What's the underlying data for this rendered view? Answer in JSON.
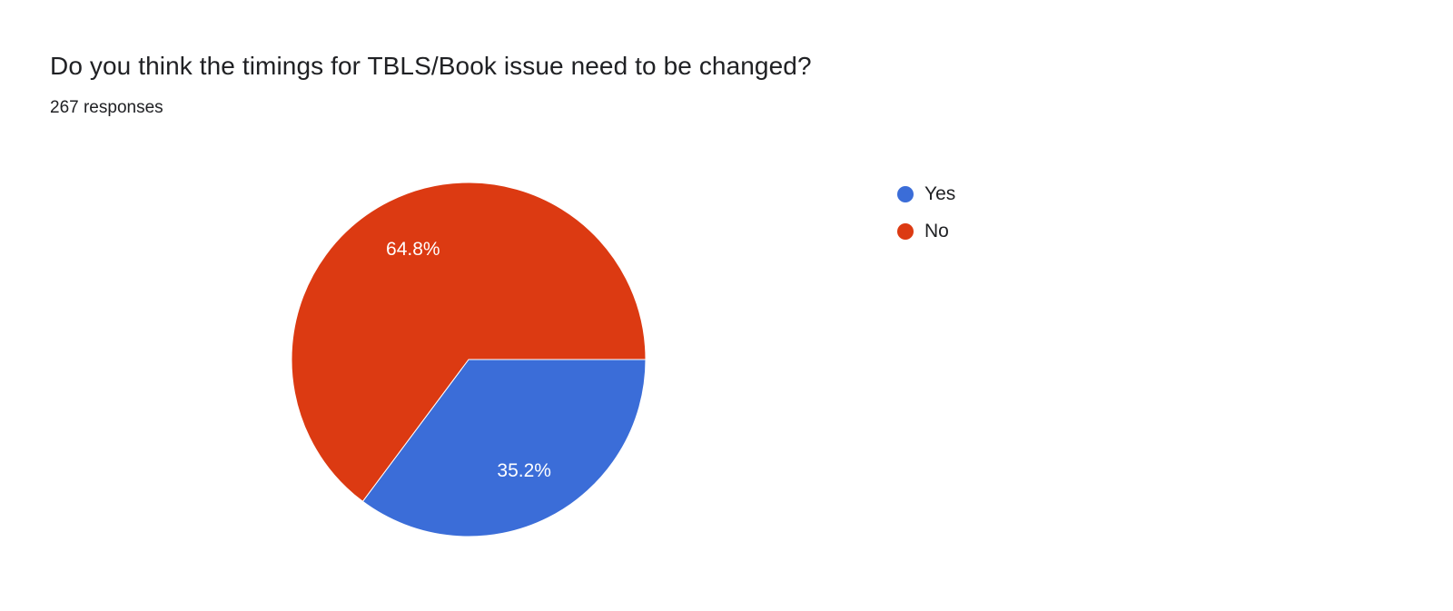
{
  "page": {
    "background_color": "#ffffff"
  },
  "chart_data": {
    "type": "pie",
    "title": "Do you think the timings for TBLS/Book issue need to be changed?",
    "subtitle": "267 responses",
    "total_responses": 267,
    "legend_position": "right",
    "start_angle_deg": 0,
    "direction": "clockwise",
    "label_format": "percent",
    "label_radius_ratio": 0.7,
    "slices": [
      {
        "label": "Yes",
        "percent": 35.2,
        "color": "#3b6dd8",
        "text_color": "#ffffff"
      },
      {
        "label": "No",
        "percent": 64.8,
        "color": "#dc3a12",
        "text_color": "#ffffff"
      }
    ]
  }
}
